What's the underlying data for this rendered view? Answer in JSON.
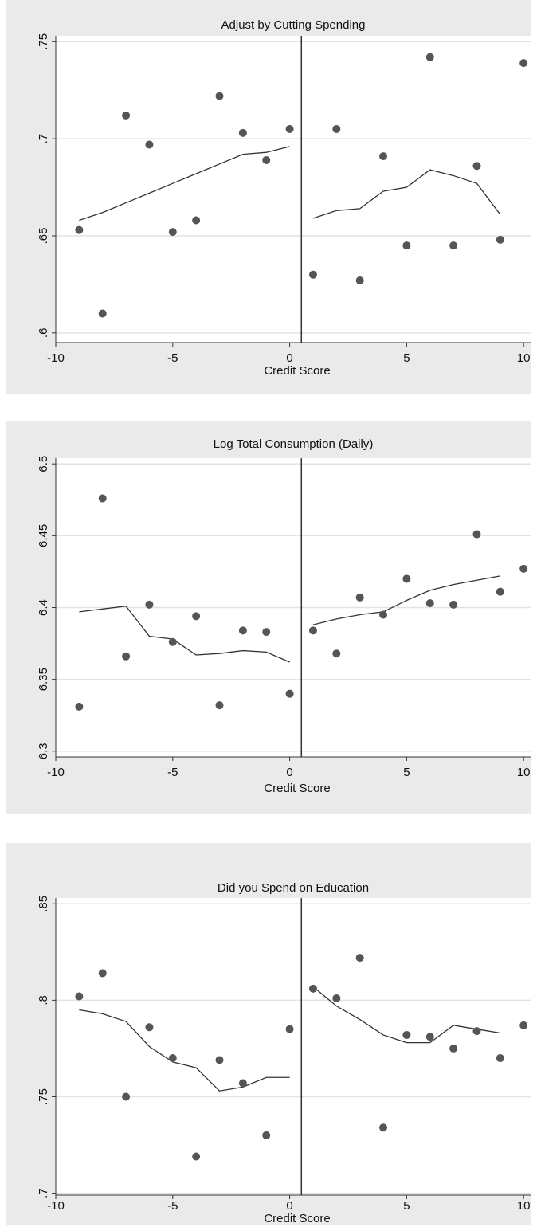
{
  "chart_data": [
    {
      "type": "scatter",
      "title": "Adjust by Cutting Spending",
      "xlabel": "Credit Score",
      "x": [
        -9,
        -8,
        -7,
        -6,
        -5,
        -4,
        -3,
        -2,
        -1,
        0,
        1,
        2,
        3,
        4,
        5,
        6,
        7,
        8,
        9,
        10
      ],
      "values": [
        0.653,
        0.61,
        0.712,
        0.697,
        0.652,
        0.658,
        0.722,
        0.703,
        0.689,
        0.705,
        0.63,
        0.705,
        0.627,
        0.691,
        0.645,
        0.742,
        0.645,
        0.686,
        0.648,
        0.739
      ],
      "color": "#555555",
      "fit": [
        {
          "x": [
            -9,
            -8,
            -7,
            -6,
            -5,
            -4,
            -3,
            -2,
            -1,
            0
          ],
          "values": [
            0.658,
            0.662,
            0.667,
            0.672,
            0.677,
            0.682,
            0.687,
            0.692,
            0.693,
            0.696
          ]
        },
        {
          "x": [
            1,
            2,
            3,
            4,
            5,
            6,
            7,
            8,
            9
          ],
          "values": [
            0.659,
            0.663,
            0.664,
            0.673,
            0.675,
            0.684,
            0.681,
            0.677,
            0.661
          ]
        }
      ],
      "fit_color": "#333333",
      "cutoff": 0.5,
      "xlim": [
        -10,
        10.3
      ],
      "ylim": [
        0.595,
        0.753
      ],
      "xticks": [
        -10,
        -5,
        0,
        5,
        10
      ],
      "yticks": [
        {
          "value": 0.6,
          "label": ".6"
        },
        {
          "value": 0.65,
          "label": ".65"
        },
        {
          "value": 0.7,
          "label": ".7"
        },
        {
          "value": 0.75,
          "label": ".75"
        }
      ],
      "grid": true
    },
    {
      "type": "scatter",
      "title": "Log Total Consumption (Daily)",
      "xlabel": "Credit Score",
      "x": [
        -9,
        -8,
        -7,
        -6,
        -5,
        -4,
        -3,
        -2,
        -1,
        0,
        1,
        2,
        3,
        4,
        5,
        6,
        7,
        8,
        9,
        10
      ],
      "values": [
        6.331,
        6.476,
        6.366,
        6.402,
        6.376,
        6.394,
        6.332,
        6.384,
        6.383,
        6.34,
        6.384,
        6.368,
        6.407,
        6.395,
        6.42,
        6.403,
        6.402,
        6.451,
        6.411,
        6.427
      ],
      "color": "#555555",
      "fit": [
        {
          "x": [
            -9,
            -8,
            -7,
            -6,
            -5,
            -4,
            -3,
            -2,
            -1,
            0
          ],
          "values": [
            6.397,
            6.399,
            6.401,
            6.38,
            6.378,
            6.367,
            6.368,
            6.37,
            6.369,
            6.362
          ]
        },
        {
          "x": [
            1,
            2,
            3,
            4,
            5,
            6,
            7,
            8,
            9
          ],
          "values": [
            6.388,
            6.392,
            6.395,
            6.397,
            6.405,
            6.412,
            6.416,
            6.419,
            6.422
          ]
        }
      ],
      "fit_color": "#333333",
      "cutoff": 0.5,
      "xlim": [
        -10,
        10.3
      ],
      "ylim": [
        6.296,
        6.504
      ],
      "xticks": [
        -10,
        -5,
        0,
        5,
        10
      ],
      "yticks": [
        6.3,
        6.35,
        6.4,
        6.45,
        6.5
      ],
      "grid": true
    },
    {
      "type": "scatter",
      "title": "Did you Spend on Education",
      "xlabel": "Credit Score",
      "x": [
        -9,
        -8,
        -7,
        -6,
        -5,
        -4,
        -3,
        -2,
        -1,
        0,
        1,
        2,
        3,
        4,
        5,
        6,
        7,
        8,
        9,
        10
      ],
      "values": [
        0.802,
        0.814,
        0.75,
        0.786,
        0.77,
        0.719,
        0.769,
        0.757,
        0.73,
        0.785,
        0.806,
        0.801,
        0.822,
        0.734,
        0.782,
        0.781,
        0.775,
        0.784,
        0.77,
        0.787
      ],
      "color": "#555555",
      "fit": [
        {
          "x": [
            -9,
            -8,
            -7,
            -6,
            -5,
            -4,
            -3,
            -2,
            -1,
            0
          ],
          "values": [
            0.795,
            0.793,
            0.789,
            0.776,
            0.768,
            0.765,
            0.753,
            0.755,
            0.76,
            0.76
          ]
        },
        {
          "x": [
            1,
            2,
            3,
            4,
            5,
            6,
            7,
            8,
            9
          ],
          "values": [
            0.807,
            0.797,
            0.79,
            0.782,
            0.778,
            0.778,
            0.787,
            0.785,
            0.783
          ]
        }
      ],
      "fit_color": "#333333",
      "cutoff": 0.5,
      "xlim": [
        -10,
        10.3
      ],
      "ylim": [
        0.699,
        0.853
      ],
      "xticks": [
        -10,
        -5,
        0,
        5,
        10
      ],
      "yticks": [
        {
          "value": 0.7,
          "label": ".7"
        },
        {
          "value": 0.75,
          "label": ".75"
        },
        {
          "value": 0.8,
          "label": ".8"
        },
        {
          "value": 0.85,
          "label": ".85"
        }
      ],
      "grid": true
    }
  ]
}
